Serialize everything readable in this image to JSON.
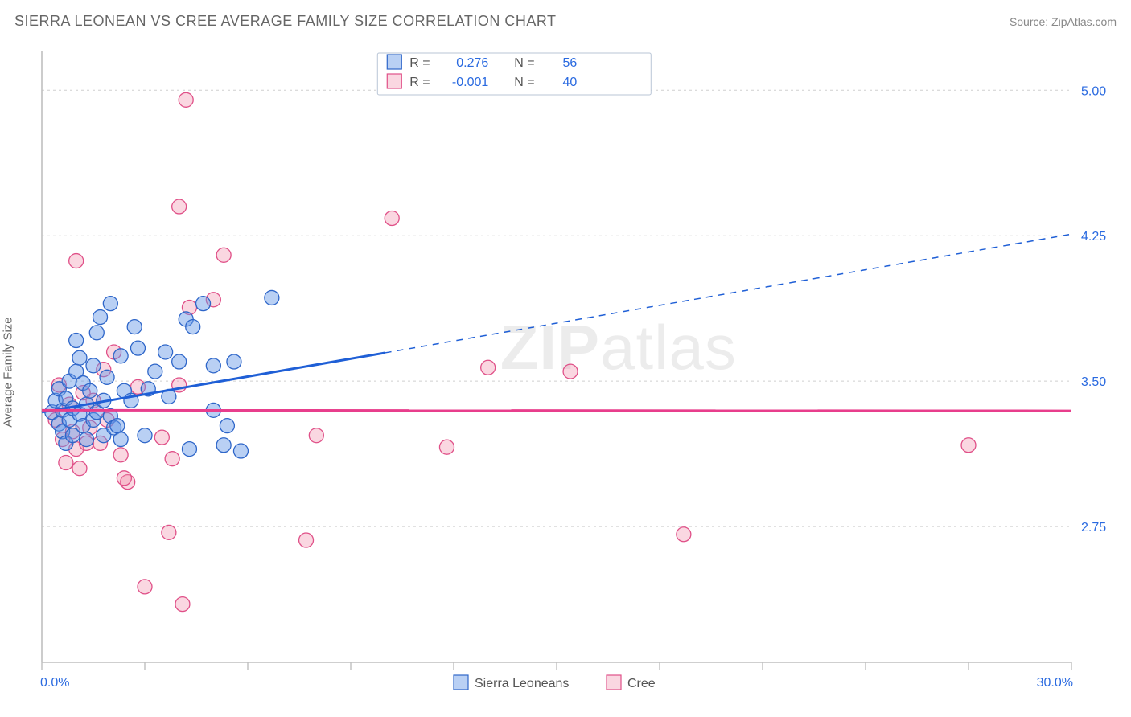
{
  "header": {
    "title": "SIERRA LEONEAN VS CREE AVERAGE FAMILY SIZE CORRELATION CHART",
    "source_prefix": "Source: ",
    "source_name": "ZipAtlas.com"
  },
  "ylabel": "Average Family Size",
  "watermark": {
    "bold": "ZIP",
    "light": "atlas"
  },
  "chart": {
    "type": "scatter",
    "xlim": [
      0,
      30
    ],
    "ylim": [
      2.05,
      5.2
    ],
    "x_tick_step": 3,
    "y_ticks": [
      2.75,
      3.5,
      4.25,
      5.0
    ],
    "x_axis_min_label": "0.0%",
    "x_axis_max_label": "30.0%",
    "background_color": "#ffffff",
    "grid_color": "#cfcfcf",
    "axis_color": "#bfbfbf",
    "series": [
      {
        "name": "Sierra Leoneans",
        "marker_fill": "rgba(100,150,230,0.45)",
        "marker_stroke": "#2e66c9",
        "marker_radius": 9,
        "trend": {
          "slope": 0.0306,
          "intercept": 3.34,
          "solid_to_x": 10,
          "color": "#1f5fd6"
        },
        "R": "0.276",
        "N": "56",
        "points": [
          [
            0.3,
            3.34
          ],
          [
            0.4,
            3.4
          ],
          [
            0.5,
            3.28
          ],
          [
            0.5,
            3.46
          ],
          [
            0.6,
            3.35
          ],
          [
            0.6,
            3.24
          ],
          [
            0.7,
            3.18
          ],
          [
            0.7,
            3.41
          ],
          [
            0.8,
            3.5
          ],
          [
            0.8,
            3.3
          ],
          [
            0.9,
            3.36
          ],
          [
            0.9,
            3.22
          ],
          [
            1.0,
            3.55
          ],
          [
            1.0,
            3.71
          ],
          [
            1.1,
            3.33
          ],
          [
            1.1,
            3.62
          ],
          [
            1.2,
            3.27
          ],
          [
            1.2,
            3.49
          ],
          [
            1.3,
            3.38
          ],
          [
            1.3,
            3.2
          ],
          [
            1.4,
            3.45
          ],
          [
            1.5,
            3.3
          ],
          [
            1.5,
            3.58
          ],
          [
            1.6,
            3.75
          ],
          [
            1.6,
            3.34
          ],
          [
            1.7,
            3.83
          ],
          [
            1.8,
            3.4
          ],
          [
            1.8,
            3.22
          ],
          [
            1.9,
            3.52
          ],
          [
            2.0,
            3.9
          ],
          [
            2.0,
            3.32
          ],
          [
            2.1,
            3.26
          ],
          [
            2.2,
            3.27
          ],
          [
            2.3,
            3.63
          ],
          [
            2.3,
            3.2
          ],
          [
            2.4,
            3.45
          ],
          [
            2.6,
            3.4
          ],
          [
            2.7,
            3.78
          ],
          [
            2.8,
            3.67
          ],
          [
            3.0,
            3.22
          ],
          [
            3.1,
            3.46
          ],
          [
            3.3,
            3.55
          ],
          [
            3.6,
            3.65
          ],
          [
            3.7,
            3.42
          ],
          [
            4.0,
            3.6
          ],
          [
            4.2,
            3.82
          ],
          [
            4.3,
            3.15
          ],
          [
            4.4,
            3.78
          ],
          [
            4.7,
            3.9
          ],
          [
            5.0,
            3.58
          ],
          [
            5.0,
            3.35
          ],
          [
            5.3,
            3.17
          ],
          [
            5.6,
            3.6
          ],
          [
            5.8,
            3.14
          ],
          [
            6.7,
            3.93
          ],
          [
            5.4,
            3.27
          ]
        ]
      },
      {
        "name": "Cree",
        "marker_fill": "rgba(240,140,170,0.35)",
        "marker_stroke": "#e05088",
        "marker_radius": 9,
        "trend": {
          "slope": -0.0001,
          "intercept": 3.35,
          "solid_to_x": 30,
          "color": "#e83e8c"
        },
        "R": "-0.001",
        "N": "40",
        "points": [
          [
            0.4,
            3.3
          ],
          [
            0.5,
            3.48
          ],
          [
            0.6,
            3.2
          ],
          [
            0.7,
            3.08
          ],
          [
            0.8,
            3.38
          ],
          [
            0.9,
            3.24
          ],
          [
            1.0,
            3.15
          ],
          [
            1.1,
            3.05
          ],
          [
            1.2,
            3.44
          ],
          [
            1.3,
            3.18
          ],
          [
            1.0,
            4.12
          ],
          [
            1.4,
            3.26
          ],
          [
            1.5,
            3.4
          ],
          [
            1.7,
            3.18
          ],
          [
            1.8,
            3.56
          ],
          [
            1.9,
            3.3
          ],
          [
            2.1,
            3.65
          ],
          [
            2.3,
            3.12
          ],
          [
            2.5,
            2.98
          ],
          [
            2.8,
            3.47
          ],
          [
            2.4,
            3.0
          ],
          [
            3.0,
            2.44
          ],
          [
            3.5,
            3.21
          ],
          [
            3.7,
            2.72
          ],
          [
            3.8,
            3.1
          ],
          [
            4.0,
            3.48
          ],
          [
            4.0,
            4.4
          ],
          [
            4.2,
            4.95
          ],
          [
            4.1,
            2.35
          ],
          [
            4.3,
            3.88
          ],
          [
            5.0,
            3.92
          ],
          [
            5.3,
            4.15
          ],
          [
            7.7,
            2.68
          ],
          [
            8.0,
            3.22
          ],
          [
            10.2,
            4.34
          ],
          [
            11.8,
            3.16
          ],
          [
            13.0,
            3.57
          ],
          [
            15.4,
            3.55
          ],
          [
            18.7,
            2.71
          ],
          [
            27.0,
            3.17
          ]
        ]
      }
    ]
  },
  "legend_top": {
    "r_label": "R =",
    "n_label": "N ="
  },
  "legend_bottom": {
    "items": [
      "Sierra Leoneans",
      "Cree"
    ]
  }
}
